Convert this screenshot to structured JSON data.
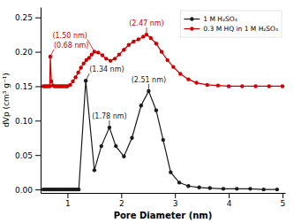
{
  "chart_data": {
    "type": "line",
    "title": "",
    "xlabel": "Pore Diameter (nm)",
    "ylabel": "dVp (cm³ g⁻¹)",
    "xlim": [
      0.5,
      5.05
    ],
    "ylim": [
      -0.005,
      0.265
    ],
    "xticks": [
      1,
      2,
      3,
      4,
      5
    ],
    "yticks": [
      {
        "value": 0.0,
        "label": "0.00"
      },
      0.05,
      {
        "value": 0.1,
        "label": "0.10"
      },
      0.15,
      {
        "value": 0.2,
        "label": "0.20"
      },
      0.25
    ],
    "grid": false,
    "legend": "upper right",
    "series": [
      {
        "name": "1 M H₂SO₄",
        "color": "#1a1a1a",
        "marker": "circle",
        "line_style": "solid",
        "x": [
          0.55,
          0.58,
          0.61,
          0.64,
          0.67,
          0.7,
          0.73,
          0.76,
          0.79,
          0.82,
          0.85,
          0.88,
          0.91,
          0.94,
          0.97,
          1.0,
          1.03,
          1.06,
          1.09,
          1.12,
          1.15,
          1.18,
          1.21,
          1.34,
          1.5,
          1.63,
          1.78,
          1.9,
          2.05,
          2.2,
          2.37,
          2.51,
          2.65,
          2.78,
          2.92,
          3.08,
          3.25,
          3.45,
          3.65,
          3.9,
          4.15,
          4.4,
          4.65,
          4.9
        ],
        "values": [
          0.0,
          0.0,
          0.0,
          0.0,
          0.0,
          0.0,
          0.0,
          0.0,
          0.0,
          0.0,
          0.0,
          0.0,
          0.0,
          0.0,
          0.0,
          0.0,
          0.0,
          0.0,
          0.0,
          0.0,
          0.0,
          0.0,
          0.0,
          0.158,
          0.028,
          0.063,
          0.09,
          0.063,
          0.048,
          0.075,
          0.122,
          0.143,
          0.115,
          0.072,
          0.025,
          0.01,
          0.005,
          0.003,
          0.002,
          0.001,
          0.001,
          0.001,
          0.0,
          0.0
        ]
      },
      {
        "name": "0.3 M HQ in 1 M H₂SO₄",
        "color": "#cc0000",
        "marker": "circle",
        "line_style": "solid",
        "x": [
          0.55,
          0.58,
          0.61,
          0.64,
          0.67,
          0.68,
          0.7,
          0.73,
          0.76,
          0.79,
          0.82,
          0.85,
          0.88,
          0.91,
          0.94,
          0.97,
          1.0,
          1.05,
          1.1,
          1.15,
          1.2,
          1.25,
          1.3,
          1.35,
          1.4,
          1.45,
          1.5,
          1.57,
          1.65,
          1.72,
          1.8,
          1.88,
          1.96,
          2.05,
          2.14,
          2.23,
          2.32,
          2.41,
          2.47,
          2.55,
          2.65,
          2.75,
          2.86,
          2.97,
          3.1,
          3.25,
          3.4,
          3.6,
          3.8,
          4.0,
          4.25,
          4.5,
          4.75,
          5.0
        ],
        "values": [
          0.15,
          0.15,
          0.15,
          0.15,
          0.15,
          0.193,
          0.157,
          0.151,
          0.15,
          0.15,
          0.15,
          0.15,
          0.15,
          0.15,
          0.15,
          0.15,
          0.15,
          0.152,
          0.157,
          0.163,
          0.17,
          0.177,
          0.183,
          0.188,
          0.191,
          0.196,
          0.2,
          0.199,
          0.195,
          0.19,
          0.187,
          0.19,
          0.196,
          0.203,
          0.21,
          0.215,
          0.218,
          0.222,
          0.225,
          0.22,
          0.212,
          0.2,
          0.188,
          0.178,
          0.168,
          0.16,
          0.155,
          0.152,
          0.151,
          0.15,
          0.15,
          0.15,
          0.15,
          0.15
        ]
      }
    ],
    "annotations": [
      {
        "text": "(1.34 nm)",
        "x": 1.34,
        "y": 0.158,
        "color": "#1a1a1a"
      },
      {
        "text": "(1.78 nm)",
        "x": 1.78,
        "y": 0.09,
        "color": "#1a1a1a"
      },
      {
        "text": "(2.51 nm)",
        "x": 2.51,
        "y": 0.143,
        "color": "#1a1a1a"
      },
      {
        "text": "(0.68 nm)",
        "x": 0.68,
        "y": 0.193,
        "color": "#cc0000"
      },
      {
        "text": "(1.50 nm)",
        "x": 1.5,
        "y": 0.2,
        "color": "#cc0000"
      },
      {
        "text": "(2.47 nm)",
        "x": 2.47,
        "y": 0.225,
        "color": "#cc0000"
      }
    ]
  }
}
